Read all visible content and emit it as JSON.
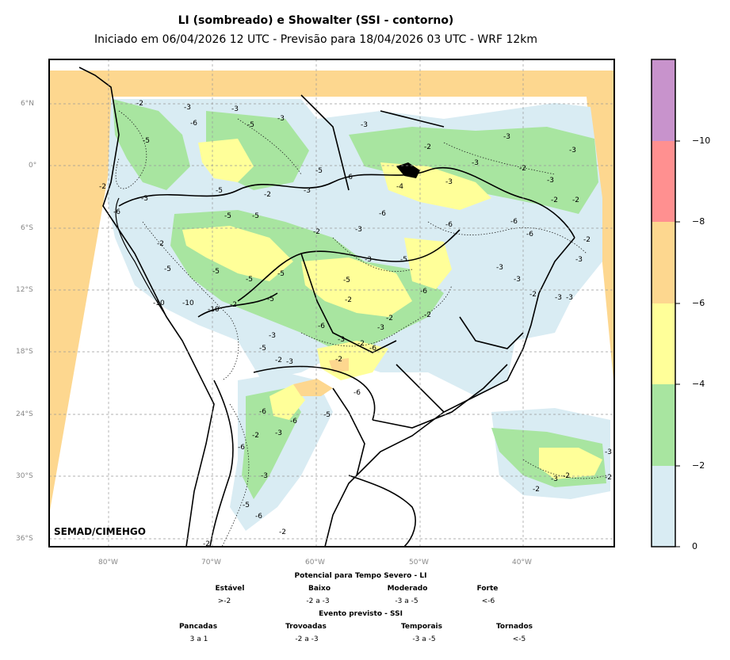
{
  "title": {
    "main": "LI (sombreado) e Showalter (SSI - contorno)",
    "sub": "Iniciado em 06/04/2026 12 UTC - Previsão para 18/04/2026 03 UTC - WRF 12km"
  },
  "map": {
    "credit": "SEMAD/CIMEHGO",
    "lat_ticks": [
      "6°N",
      "0°",
      "6°S",
      "12°S",
      "18°S",
      "24°S",
      "30°S",
      "36°S"
    ],
    "lon_ticks": [
      "80°W",
      "70°W",
      "60°W",
      "50°W",
      "40°W"
    ],
    "contour_labels": [
      "-3",
      "-2",
      "-5",
      "-6",
      "-10",
      "-4"
    ]
  },
  "colorbar": {
    "ticks": [
      "−10",
      "−8",
      "−6",
      "−4",
      "−2",
      "0"
    ],
    "colors": [
      "#c893cc",
      "#ff9090",
      "#fdd78f",
      "#ffff99",
      "#a8e5a0",
      "#d9ecf3"
    ]
  },
  "legend": {
    "li_title": "Potencial para Tempo Severo - LI",
    "li_categories": [
      {
        "name": "Estável",
        "range": ">-2"
      },
      {
        "name": "Baixo",
        "range": "-2 a -3"
      },
      {
        "name": "Moderado",
        "range": "-3 a -5"
      },
      {
        "name": "Forte",
        "range": "<-6"
      }
    ],
    "ssi_title": "Evento previsto - SSI",
    "ssi_categories": [
      {
        "name": "Pancadas",
        "range": "3 a 1"
      },
      {
        "name": "Trovoadas",
        "range": "-2 a -3"
      },
      {
        "name": "Temporais",
        "range": "-3 a -5"
      },
      {
        "name": "Tornados",
        "range": "<-5"
      }
    ]
  }
}
